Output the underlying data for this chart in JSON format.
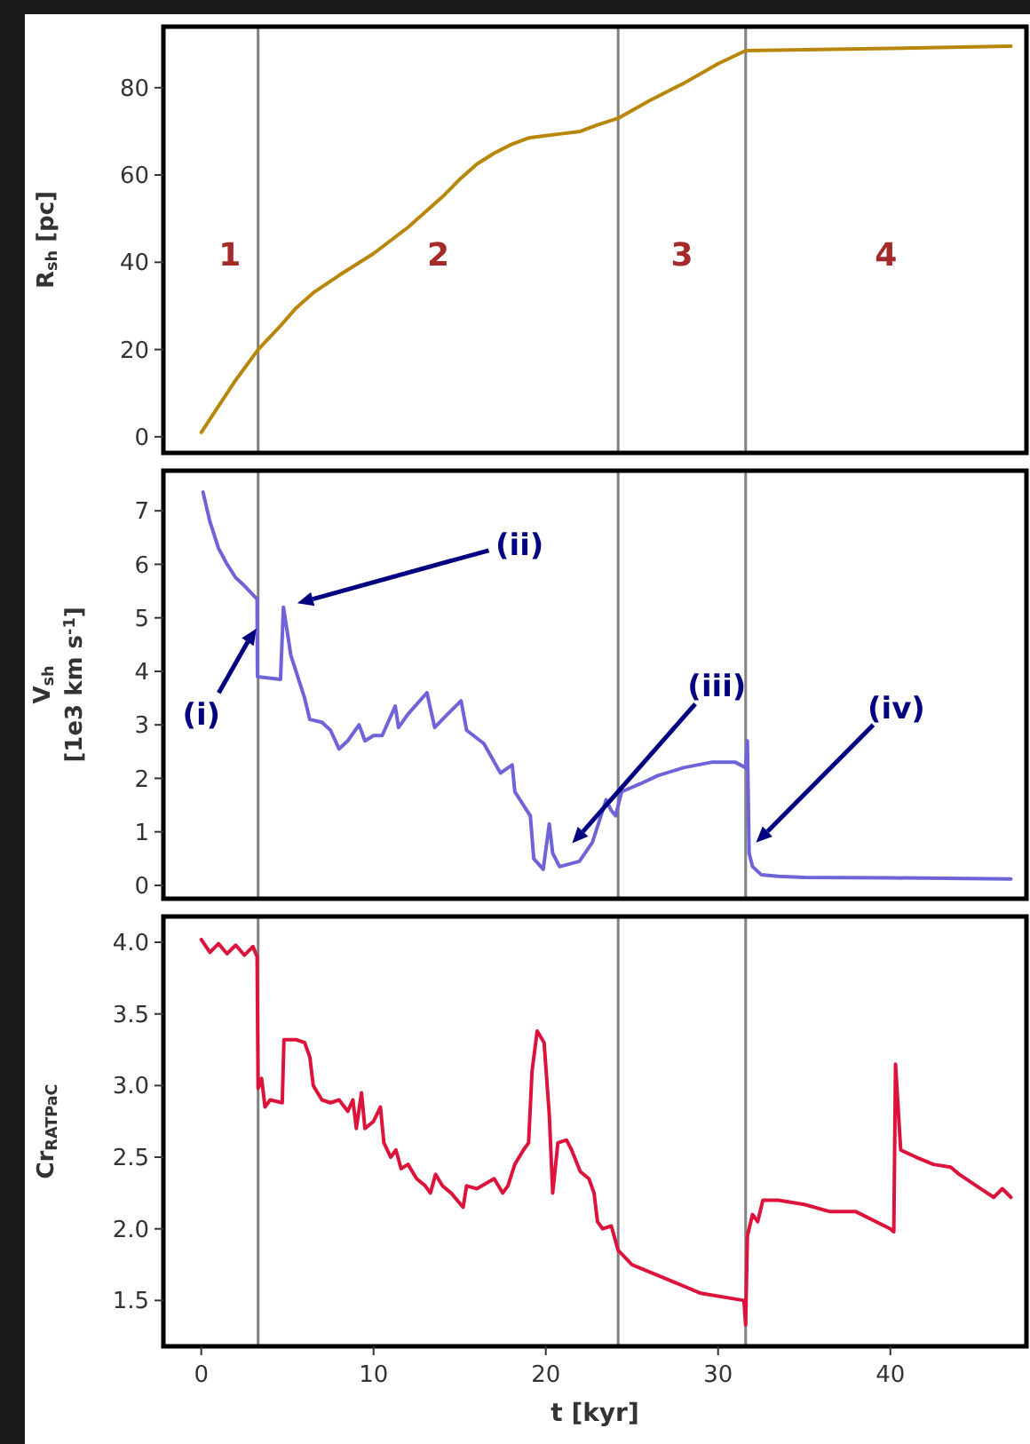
{
  "chart_data": [
    {
      "type": "line",
      "xlim": [
        -2.2,
        47.9
      ],
      "xticks": [
        0,
        10,
        20,
        30,
        40
      ],
      "ylim": [
        -3.7,
        94
      ],
      "yticks": [
        0,
        20,
        40,
        60,
        80
      ],
      "ylabel": "R$_{sh}$ [pc]",
      "tick_labels": "y",
      "grid": false,
      "series": [
        {
          "color": "#b8860b",
          "x": [
            0,
            1,
            2,
            3.3,
            4.5,
            5.5,
            6.5,
            8,
            10,
            12,
            14,
            15,
            16,
            17,
            18,
            19,
            20,
            21,
            22,
            23,
            24.2,
            26,
            28,
            30,
            31.6,
            35,
            40,
            47
          ],
          "values": [
            1,
            7,
            13,
            20,
            25,
            29.5,
            33,
            37,
            42,
            48,
            55,
            59,
            62.5,
            65,
            67,
            68.5,
            69,
            69.5,
            70,
            71.5,
            73,
            77,
            81,
            85.5,
            88.5,
            88.7,
            89,
            89.5
          ]
        }
      ],
      "ref_lines": [
        {
          "axis": "x",
          "value": 3.3,
          "color": "#808080"
        },
        {
          "axis": "x",
          "value": 24.2,
          "color": "#808080"
        },
        {
          "axis": "x",
          "value": 31.6,
          "color": "#808080"
        }
      ],
      "annotations": [
        "1",
        "2",
        "3",
        "4"
      ]
    },
    {
      "type": "line",
      "xlim": [
        -2.2,
        47.9
      ],
      "xticks": [
        0,
        10,
        20,
        30,
        40
      ],
      "ylim": [
        -0.25,
        7.75
      ],
      "yticks": [
        0,
        1,
        2,
        3,
        4,
        5,
        6,
        7
      ],
      "ylabel": "V$_{sh}$\n[1e3 km s$^{-1}$]",
      "tick_labels": "y",
      "grid": false,
      "series": [
        {
          "color": "#6f63d9",
          "x": [
            0.1,
            0.5,
            1,
            1.5,
            2,
            2.5,
            3.24,
            3.26,
            4.6,
            4.77,
            5.2,
            5.5,
            6,
            6.3,
            7,
            7.5,
            8,
            8.5,
            9.16,
            9.5,
            10,
            10.5,
            11.26,
            11.45,
            12,
            13.1,
            13.55,
            14.3,
            15.08,
            15.4,
            16.4,
            17.37,
            18.05,
            18.2,
            19.1,
            19.3,
            19.85,
            20.2,
            20.4,
            20.8,
            21.95,
            22.7,
            23.5,
            23.8,
            24.05,
            24.4,
            25.5,
            26.5,
            28,
            29.6,
            31,
            31.6,
            31.7,
            31.8,
            32,
            32.5,
            33.5,
            35,
            40,
            47
          ],
          "values": [
            7.35,
            6.8,
            6.3,
            6.0,
            5.75,
            5.6,
            5.35,
            3.9,
            3.85,
            5.2,
            4.3,
            4.0,
            3.5,
            3.1,
            3.05,
            2.9,
            2.55,
            2.7,
            3.0,
            2.7,
            2.8,
            2.8,
            3.35,
            2.95,
            3.2,
            3.6,
            2.95,
            3.2,
            3.45,
            2.9,
            2.65,
            2.1,
            2.25,
            1.75,
            1.3,
            0.5,
            0.3,
            1.15,
            0.6,
            0.35,
            0.45,
            0.8,
            1.6,
            1.4,
            1.3,
            1.75,
            1.9,
            2.05,
            2.2,
            2.3,
            2.3,
            2.2,
            2.7,
            0.6,
            0.35,
            0.2,
            0.17,
            0.15,
            0.14,
            0.12
          ]
        }
      ],
      "ref_lines": [
        {
          "axis": "x",
          "value": 3.3,
          "color": "#808080"
        },
        {
          "axis": "x",
          "value": 24.2,
          "color": "#808080"
        },
        {
          "axis": "x",
          "value": 31.6,
          "color": "#808080"
        }
      ],
      "annotations": [
        {
          "text": "(i)",
          "x": 3.2,
          "y": 4.8
        },
        "(ii)",
        "(iii)",
        {
          "text": "(iv)",
          "x": 32.2,
          "y": 0.8
        }
      ]
    },
    {
      "type": "line",
      "xlim": [
        -2.2,
        47.9
      ],
      "xticks": [
        0,
        10,
        20,
        30,
        40
      ],
      "ylim": [
        1.18,
        4.18
      ],
      "yticks": [
        {
          "value": 1.5,
          "label": "1.5"
        },
        {
          "value": 2,
          "label": "2.0"
        },
        {
          "value": 2.5,
          "label": "2.5"
        },
        {
          "value": 3,
          "label": "3.0"
        },
        {
          "value": 3.5,
          "label": "3.5"
        },
        {
          "value": 4,
          "label": "4.0"
        }
      ],
      "ylabel": "Cr$_{RATPaC}$",
      "xlabel": "t [kyr]",
      "grid": false,
      "series": [
        {
          "color": "#dc143c",
          "x": [
            0,
            0.5,
            1,
            1.5,
            2,
            2.5,
            3,
            3.24,
            3.3,
            3.5,
            3.7,
            4,
            4.7,
            4.8,
            5.5,
            6,
            6.3,
            6.5,
            7,
            7.5,
            8,
            8.5,
            8.8,
            9,
            9.3,
            9.5,
            10,
            10.4,
            10.6,
            11,
            11.3,
            11.6,
            12,
            12.5,
            13,
            13.3,
            13.6,
            14,
            14.5,
            15.2,
            15.4,
            16,
            17,
            17.5,
            17.8,
            18.2,
            18.7,
            19,
            19.2,
            19.5,
            19.9,
            20.2,
            20.4,
            20.7,
            21.2,
            21.5,
            22,
            22.5,
            22.8,
            23,
            23.3,
            23.8,
            24.2,
            25,
            27,
            29,
            31.5,
            31.6,
            31.7,
            32,
            32.3,
            32.6,
            33.5,
            35,
            36.5,
            38,
            40,
            40.2,
            40.3,
            40.5,
            40.6,
            41.5,
            42.5,
            43.5,
            44,
            45,
            46,
            46.5,
            47
          ],
          "values": [
            4.02,
            3.93,
            3.99,
            3.92,
            3.98,
            3.91,
            3.97,
            3.9,
            2.98,
            3.05,
            2.85,
            2.9,
            2.88,
            3.32,
            3.32,
            3.3,
            3.2,
            3.0,
            2.9,
            2.88,
            2.9,
            2.82,
            2.9,
            2.7,
            2.95,
            2.7,
            2.75,
            2.85,
            2.6,
            2.5,
            2.55,
            2.42,
            2.45,
            2.35,
            2.3,
            2.25,
            2.38,
            2.3,
            2.25,
            2.15,
            2.3,
            2.28,
            2.35,
            2.25,
            2.3,
            2.45,
            2.55,
            2.6,
            3.1,
            3.38,
            3.3,
            2.8,
            2.25,
            2.6,
            2.62,
            2.55,
            2.4,
            2.35,
            2.25,
            2.05,
            2.0,
            2.02,
            1.85,
            1.75,
            1.65,
            1.55,
            1.5,
            1.33,
            1.95,
            2.1,
            2.05,
            2.2,
            2.2,
            2.17,
            2.12,
            2.12,
            2.0,
            1.98,
            3.15,
            2.75,
            2.55,
            2.5,
            2.45,
            2.43,
            2.38,
            2.3,
            2.22,
            2.28,
            2.22
          ]
        }
      ],
      "ref_lines": [
        {
          "axis": "x",
          "value": 3.3,
          "color": "#808080"
        },
        {
          "axis": "x",
          "value": 24.2,
          "color": "#808080"
        },
        {
          "axis": "x",
          "value": 31.6,
          "color": "#808080"
        }
      ]
    }
  ]
}
